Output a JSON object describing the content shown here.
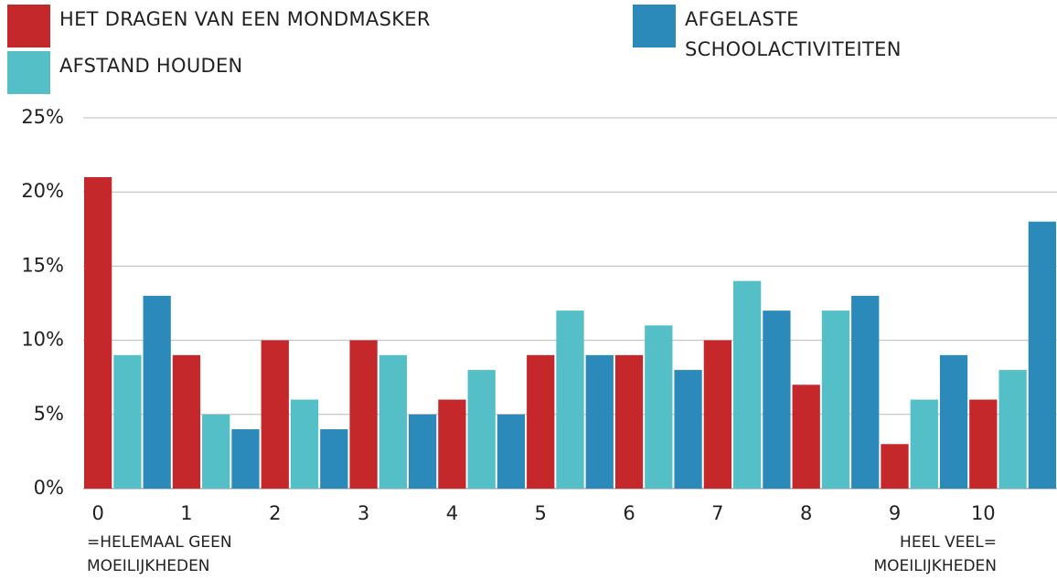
{
  "chart_data": {
    "type": "bar",
    "categories": [
      "0",
      "1",
      "2",
      "3",
      "4",
      "5",
      "6",
      "7",
      "8",
      "9",
      "10"
    ],
    "series": [
      {
        "name": "HET DRAGEN VAN EEN MONDMASKER",
        "color": "#c4282a",
        "values": [
          21,
          9,
          10,
          10,
          6,
          9,
          9,
          10,
          7,
          3,
          6
        ]
      },
      {
        "name": "AFSTAND HOUDEN",
        "color": "#55bfc8",
        "values": [
          9,
          5,
          6,
          9,
          8,
          12,
          11,
          14,
          12,
          6,
          8
        ]
      },
      {
        "name": "AFGELASTE SCHOOLACTIVITEITEN",
        "color": "#2c8abb",
        "values": [
          13,
          4,
          4,
          5,
          5,
          9,
          8,
          12,
          13,
          9,
          18
        ]
      }
    ],
    "ylim": [
      0,
      25
    ],
    "yticks": [
      {
        "value": 0,
        "label": "0%"
      },
      {
        "value": 5,
        "label": "5%"
      },
      {
        "value": 10,
        "label": "10%"
      },
      {
        "value": 15,
        "label": "15%"
      },
      {
        "value": 20,
        "label": "20%"
      },
      {
        "value": 25,
        "label": "25%"
      }
    ],
    "grid": true,
    "x_note_left": [
      "=HELEMAAL GEEN",
      "MOEILIJKHEDEN"
    ],
    "x_note_right": [
      "HEEL VEEL=",
      "MOEILIJKHEDEN"
    ]
  }
}
